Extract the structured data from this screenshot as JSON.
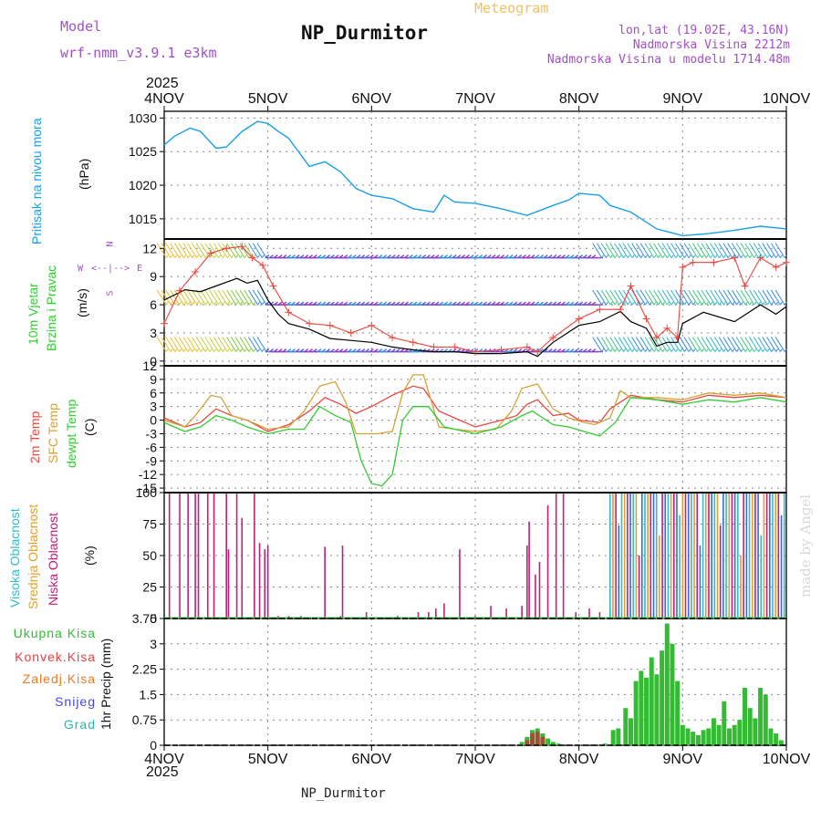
{
  "header": {
    "model_label": "Model",
    "model_name": "wrf-nmm_v3.9.1 e3km",
    "station_title": "NP_Durmitor",
    "meteogram_label": "Meteogram",
    "lonlat": "lon,lat (19.02E, 43.16N)",
    "altitude": "Nadmorska Visina 2212m",
    "model_altitude": "Nadmorska Visina u modelu 1714.48m",
    "year_top": "2025",
    "year_bottom": "2025",
    "footer_station": "NP_Durmitor",
    "credit": "made by Angel"
  },
  "colors": {
    "pressure": "#1aa0e6",
    "wind_speed": "#000000",
    "gust": "#e8473f",
    "temp2m": "#e8473f",
    "sfc_temp": "#d4a23a",
    "dewpoint": "#33cc33",
    "high_cloud": "#33bbcc",
    "mid_cloud": "#e0a030",
    "low_cloud": "#c0207a",
    "total_precip": "#33bb33",
    "conv_precip": "#e84040",
    "frozen": "#f07820",
    "snow": "#4444ee",
    "hail": "#22bbaa",
    "title": "#111111",
    "model_text": "#a050c8",
    "meteogram_text": "#f0c060"
  },
  "panels": {
    "pressure": {
      "label": "Pritisak na nivou mora",
      "unit": "(hPa)"
    },
    "wind": {
      "label1": "10m Vjetar",
      "label2": "Brzina i Pravac",
      "unit": "(m/s)",
      "compass_w": "W",
      "compass_e": "E",
      "compass_n": "N",
      "compass_s": "S",
      "compass_arrows": "<--|-->"
    },
    "temp": {
      "label1": "2m Temp",
      "label2": "SFC Temp",
      "label3": "dewpt Temp",
      "unit": "(C)"
    },
    "cloud": {
      "label1": "Visoka Oblacnost",
      "label2": "Srednja Oblacnost",
      "label3": "Niska Oblacnost",
      "unit": "(%)"
    },
    "precip": {
      "unit_label": "1hr Precip (mm)"
    }
  },
  "precip_legend": [
    "Ukupna Kisa",
    "Konvek.Kisa",
    "Zaledj.Kisa",
    "Snijeg",
    "Grad"
  ],
  "chart_data": {
    "type": "line",
    "x_tick_labels": [
      "4NOV",
      "5NOV",
      "6NOV",
      "7NOV",
      "8NOV",
      "9NOV",
      "10NOV"
    ],
    "x_range_days": [
      0,
      6
    ],
    "pressure": {
      "name": "Pritisak na nivou mora (hPa)",
      "ylim": [
        1012,
        1031
      ],
      "yticks": [
        "1015",
        "1020",
        "1025",
        "1030"
      ],
      "x": [
        0,
        0.1,
        0.25,
        0.35,
        0.5,
        0.6,
        0.75,
        0.9,
        1.0,
        1.1,
        1.2,
        1.4,
        1.55,
        1.7,
        1.85,
        2.0,
        2.2,
        2.4,
        2.6,
        2.7,
        2.8,
        3.0,
        3.25,
        3.5,
        3.75,
        3.9,
        4.0,
        4.2,
        4.3,
        4.5,
        4.75,
        5.0,
        5.25,
        5.5,
        5.75,
        6.0
      ],
      "y": [
        1026.0,
        1027.3,
        1028.5,
        1028.0,
        1025.5,
        1025.7,
        1028.0,
        1029.5,
        1029.2,
        1028.0,
        1027.0,
        1022.8,
        1023.5,
        1022.0,
        1019.5,
        1018.5,
        1018.0,
        1016.5,
        1016.0,
        1018.5,
        1017.5,
        1017.3,
        1016.5,
        1015.5,
        1017.0,
        1017.8,
        1018.8,
        1018.5,
        1017.0,
        1016.0,
        1013.5,
        1012.5,
        1012.8,
        1013.3,
        1013.9,
        1013.5
      ]
    },
    "wind": {
      "ylim": [
        -0.5,
        13
      ],
      "yticks": [
        "0",
        "3",
        "6",
        "9",
        "12"
      ],
      "series": [
        {
          "name": "10m wind speed",
          "x": [
            0,
            0.2,
            0.35,
            0.5,
            0.7,
            0.8,
            0.9,
            1.0,
            1.1,
            1.2,
            1.4,
            1.6,
            1.8,
            2.0,
            2.2,
            2.4,
            2.6,
            2.8,
            3.0,
            3.25,
            3.5,
            3.6,
            3.75,
            4.0,
            4.2,
            4.4,
            4.5,
            4.65,
            4.75,
            4.85,
            4.95,
            5.0,
            5.2,
            5.5,
            5.75,
            5.9,
            6.0
          ],
          "y": [
            6.5,
            7.6,
            7.4,
            8.0,
            8.8,
            8.3,
            8.6,
            6.5,
            5.0,
            4.0,
            3.4,
            2.4,
            2.2,
            2.0,
            1.5,
            1.2,
            1.0,
            1.0,
            0.8,
            0.8,
            1.0,
            0.5,
            2.0,
            3.8,
            4.2,
            5.3,
            4.2,
            3.5,
            1.6,
            2.0,
            2.0,
            4.0,
            5.2,
            4.2,
            6.0,
            5.0,
            5.8
          ]
        },
        {
          "name": "wind gust",
          "x": [
            0,
            0.15,
            0.3,
            0.45,
            0.6,
            0.75,
            0.85,
            0.95,
            1.05,
            1.2,
            1.4,
            1.6,
            1.8,
            2.0,
            2.2,
            2.4,
            2.6,
            2.8,
            3.0,
            3.25,
            3.5,
            3.6,
            3.75,
            4.0,
            4.2,
            4.4,
            4.5,
            4.65,
            4.75,
            4.85,
            4.95,
            5.0,
            5.1,
            5.3,
            5.5,
            5.6,
            5.75,
            5.9,
            6.0
          ],
          "y": [
            4.0,
            7.5,
            9.5,
            11.5,
            12.0,
            12.2,
            11.0,
            10.2,
            8.0,
            5.2,
            4.0,
            3.8,
            3.0,
            3.8,
            2.5,
            2.0,
            1.5,
            1.5,
            1.0,
            1.2,
            1.5,
            1.0,
            2.5,
            4.5,
            5.5,
            5.5,
            8.0,
            4.5,
            2.5,
            3.5,
            2.5,
            10.0,
            10.5,
            10.5,
            11.0,
            8.0,
            11.0,
            10.0,
            10.5
          ]
        }
      ],
      "wind_barb_rows": [
        1.0,
        6.0,
        11.0
      ]
    },
    "temp": {
      "ylim": [
        -16,
        12
      ],
      "yticks": [
        "12",
        "9",
        "6",
        "3",
        "0",
        "-3",
        "-6",
        "-9",
        "-12",
        "-15"
      ],
      "series": [
        {
          "name": "2m Temp",
          "x": [
            0,
            0.2,
            0.35,
            0.5,
            0.65,
            0.8,
            1.0,
            1.2,
            1.4,
            1.55,
            1.7,
            1.85,
            2.0,
            2.2,
            2.4,
            2.5,
            2.65,
            2.8,
            3.0,
            3.25,
            3.4,
            3.5,
            3.6,
            3.75,
            3.9,
            4.0,
            4.2,
            4.3,
            4.5,
            4.75,
            5.0,
            5.25,
            5.5,
            5.75,
            6.0
          ],
          "y": [
            0.5,
            -1.5,
            -0.5,
            2.5,
            1.0,
            0.0,
            -2.5,
            -1.0,
            2.0,
            5.0,
            3.5,
            1.5,
            3.0,
            5.5,
            7.5,
            7.0,
            2.0,
            0.5,
            -1.5,
            0.0,
            1.0,
            3.5,
            4.5,
            1.0,
            1.5,
            0.0,
            -0.5,
            2.5,
            5.5,
            4.5,
            4.0,
            5.5,
            5.0,
            5.5,
            5.0
          ]
        },
        {
          "name": "SFC Temp",
          "x": [
            0,
            0.2,
            0.3,
            0.45,
            0.55,
            0.65,
            0.8,
            1.0,
            1.2,
            1.35,
            1.5,
            1.65,
            1.75,
            1.85,
            1.95,
            2.05,
            2.2,
            2.3,
            2.4,
            2.5,
            2.65,
            2.8,
            3.0,
            3.2,
            3.35,
            3.45,
            3.6,
            3.75,
            3.9,
            4.05,
            4.15,
            4.3,
            4.4,
            4.5,
            4.75,
            5.0,
            5.25,
            5.5,
            5.75,
            6.0
          ],
          "y": [
            0.0,
            -1.5,
            1.0,
            5.5,
            5.0,
            1.0,
            0.0,
            -2.0,
            -1.5,
            2.0,
            7.5,
            8.5,
            4.0,
            -3.0,
            -3.0,
            -3.0,
            -2.5,
            6.0,
            10.0,
            10.0,
            -1.5,
            -2.0,
            -2.5,
            -2.0,
            2.0,
            7.0,
            8.0,
            2.5,
            0.5,
            -0.5,
            -1.0,
            0.5,
            6.5,
            5.0,
            5.0,
            4.5,
            6.0,
            5.5,
            6.0,
            5.0
          ]
        },
        {
          "name": "dewpt Temp",
          "x": [
            0,
            0.2,
            0.35,
            0.5,
            0.65,
            0.8,
            1.0,
            1.2,
            1.35,
            1.5,
            1.65,
            1.8,
            1.9,
            2.0,
            2.1,
            2.2,
            2.3,
            2.4,
            2.55,
            2.7,
            2.8,
            3.0,
            3.25,
            3.45,
            3.55,
            3.75,
            3.9,
            4.05,
            4.2,
            4.35,
            4.5,
            4.75,
            5.0,
            5.25,
            5.5,
            5.75,
            6.0
          ],
          "y": [
            -0.5,
            -2.5,
            -1.5,
            1.0,
            0.0,
            -1.5,
            -3.0,
            -2.0,
            -2.0,
            3.0,
            1.0,
            -0.5,
            -9.0,
            -14.0,
            -14.5,
            -12.0,
            0.0,
            3.0,
            3.0,
            -1.5,
            -2.0,
            -3.0,
            -1.5,
            1.0,
            2.0,
            -1.0,
            -1.5,
            -2.5,
            -3.5,
            -0.5,
            5.0,
            4.5,
            3.5,
            4.5,
            4.0,
            5.0,
            4.0
          ]
        }
      ]
    },
    "cloud": {
      "ylim": [
        0,
        100
      ],
      "yticks": [
        "0",
        "25",
        "50",
        "75",
        "100"
      ],
      "low_cloud_days": [
        0.05,
        0.15,
        0.23,
        0.3,
        0.33,
        0.42,
        0.48,
        0.6,
        0.62,
        0.7,
        0.75,
        0.87,
        0.92,
        0.97,
        1.0,
        1.1,
        1.2,
        1.32,
        1.55,
        1.7,
        1.72,
        1.95,
        2.25,
        2.45,
        2.55,
        2.62,
        2.7,
        2.85,
        3.0,
        3.15,
        3.3,
        3.45,
        3.5,
        3.52,
        3.58,
        3.62,
        3.7,
        3.78,
        3.85,
        3.97,
        4.1,
        4.2,
        4.3
      ],
      "low_cloud_values": [
        100,
        100,
        100,
        100,
        100,
        100,
        100,
        100,
        55,
        100,
        80,
        100,
        60,
        55,
        58,
        2,
        2,
        2,
        57,
        2,
        58,
        5,
        2,
        5,
        5,
        8,
        12,
        55,
        2,
        10,
        8,
        10,
        58,
        77,
        35,
        45,
        90,
        100,
        100,
        5,
        8,
        5,
        8
      ],
      "overcast_from_day": 4.3
    },
    "precip": {
      "ylim": [
        0,
        3.75
      ],
      "yticks": [
        "0",
        "0.75",
        "1.5",
        "2.25",
        "3",
        "3.75"
      ],
      "total_days": [
        3.45,
        3.5,
        3.55,
        3.6,
        3.65,
        3.7,
        3.75,
        3.8,
        4.25,
        4.33,
        4.38,
        4.45,
        4.5,
        4.55,
        4.6,
        4.65,
        4.7,
        4.75,
        4.8,
        4.85,
        4.9,
        4.95,
        5.0,
        5.05,
        5.1,
        5.15,
        5.2,
        5.25,
        5.3,
        5.35,
        5.4,
        5.45,
        5.5,
        5.55,
        5.6,
        5.65,
        5.7,
        5.75,
        5.8,
        5.85,
        5.9,
        5.95
      ],
      "total_values": [
        0.1,
        0.25,
        0.45,
        0.5,
        0.35,
        0.2,
        0.1,
        0.05,
        0.05,
        0.45,
        0.5,
        1.1,
        0.8,
        1.9,
        2.2,
        2.0,
        2.6,
        2.1,
        2.8,
        3.6,
        3.0,
        1.9,
        0.6,
        0.5,
        0.4,
        0.3,
        0.45,
        0.5,
        0.8,
        0.6,
        1.3,
        0.5,
        0.6,
        0.75,
        1.7,
        1.1,
        0.8,
        1.7,
        1.5,
        0.5,
        0.35,
        0.15
      ],
      "conv_days": [
        3.5,
        3.55,
        3.6,
        3.65
      ],
      "conv_values": [
        0.15,
        0.35,
        0.4,
        0.25
      ]
    }
  }
}
